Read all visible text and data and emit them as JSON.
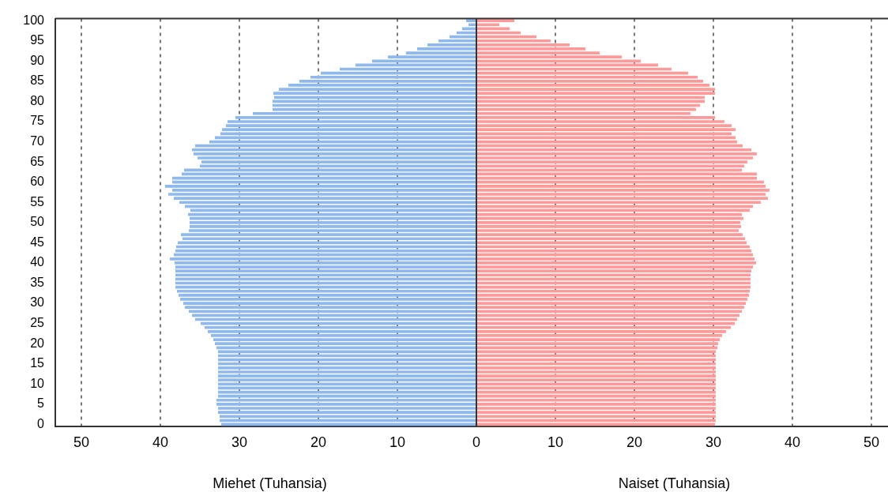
{
  "chart_data": {
    "type": "bar",
    "orientation": "horizontal",
    "categories": [
      "100",
      null,
      null,
      null,
      null,
      "95",
      null,
      null,
      null,
      null,
      "90",
      null,
      null,
      null,
      null,
      "85",
      null,
      null,
      null,
      null,
      "80",
      null,
      null,
      null,
      null,
      "75",
      null,
      null,
      null,
      null,
      "70",
      null,
      null,
      null,
      null,
      "65",
      null,
      null,
      null,
      null,
      "60",
      null,
      null,
      null,
      null,
      "55",
      null,
      null,
      null,
      null,
      "50",
      null,
      null,
      null,
      null,
      "45",
      null,
      null,
      null,
      null,
      "40",
      null,
      null,
      null,
      null,
      "35",
      null,
      null,
      null,
      null,
      "30",
      null,
      null,
      null,
      null,
      "25",
      null,
      null,
      null,
      null,
      "20",
      null,
      null,
      null,
      null,
      "15",
      null,
      null,
      null,
      null,
      "10",
      null,
      null,
      null,
      null,
      "5",
      null,
      null,
      null,
      null,
      "0"
    ],
    "stacked": true,
    "annotations": [
      "Miehet (Tuhansia)",
      "Naiset (Tuhansia)"
    ],
    "series": [
      {
        "color": "#8fb8ec",
        "values": [
          -1.3,
          -1.0,
          -1.8,
          -2.5,
          -3.4,
          -4.8,
          -6.2,
          -7.5,
          -8.9,
          -11.2,
          -13.2,
          -15.3,
          -17.3,
          -19.7,
          -21.0,
          -22.4,
          -23.8,
          -25.0,
          -25.7,
          -25.6,
          -25.8,
          -25.8,
          -25.8,
          -28.3,
          -30.5,
          -31.5,
          -31.7,
          -32.2,
          -32.4,
          -33.1,
          -33.8,
          -35.6,
          -36.0,
          -35.8,
          -35.3,
          -34.8,
          -35.0,
          -37.0,
          -37.3,
          -38.5,
          -38.5,
          -39.4,
          -38.5,
          -39.0,
          -38.3,
          -37.6,
          -36.9,
          -36.2,
          -36.5,
          -36.3,
          -36.3,
          -36.3,
          -36.4,
          -37.4,
          -37.2,
          -37.8,
          -38.0,
          -38.1,
          -38.3,
          -38.8,
          -38.2,
          -38.1,
          -38.1,
          -38.1,
          -38.1,
          -38.1,
          -38.1,
          -37.9,
          -37.7,
          -37.5,
          -37.1,
          -36.9,
          -36.4,
          -36.0,
          -35.6,
          -34.9,
          -34.4,
          -34.0,
          -33.6,
          -33.3,
          -33.1,
          -32.9,
          -32.7,
          -32.7,
          -32.7,
          -32.7,
          -32.7,
          -32.7,
          -32.7,
          -32.7,
          -32.7,
          -32.7,
          -32.7,
          -32.7,
          -32.9,
          -32.9,
          -32.7,
          -32.7,
          -32.5,
          -32.5,
          -32.3
        ]
      },
      {
        "color": "#ff9a9a",
        "values": [
          4.8,
          2.9,
          4.2,
          5.6,
          7.6,
          9.4,
          11.8,
          13.8,
          15.6,
          18.4,
          20.8,
          23.0,
          24.7,
          26.8,
          28.0,
          28.7,
          29.5,
          30.2,
          30.2,
          28.9,
          28.9,
          28.3,
          27.8,
          27.1,
          30.2,
          31.4,
          32.3,
          32.8,
          32.3,
          32.8,
          33.0,
          33.7,
          34.8,
          35.5,
          35.0,
          34.3,
          33.9,
          33.6,
          35.5,
          35.5,
          36.4,
          36.6,
          37.1,
          36.6,
          36.9,
          36.0,
          35.0,
          34.6,
          33.6,
          33.8,
          33.4,
          33.5,
          33.2,
          33.7,
          34.0,
          34.2,
          34.6,
          34.8,
          35.0,
          35.2,
          35.4,
          35.0,
          34.8,
          34.7,
          34.7,
          34.7,
          34.7,
          34.6,
          34.5,
          34.3,
          34.1,
          33.9,
          33.6,
          33.3,
          33.0,
          32.7,
          32.2,
          31.6,
          31.1,
          30.8,
          30.6,
          30.5,
          30.3,
          30.3,
          30.3,
          30.3,
          30.3,
          30.3,
          30.3,
          30.3,
          30.3,
          30.3,
          30.3,
          30.3,
          30.3,
          30.3,
          30.3,
          30.3,
          30.3,
          30.3,
          30.2
        ]
      }
    ],
    "xlim": [
      -53.3,
      52.1
    ],
    "xticks": [
      {
        "value": -50,
        "label": "50"
      },
      {
        "value": -40,
        "label": "40"
      },
      {
        "value": -30,
        "label": "30"
      },
      {
        "value": -20,
        "label": "20"
      },
      {
        "value": -10,
        "label": "10"
      },
      0,
      10,
      20,
      30,
      40,
      50
    ],
    "grid": "x",
    "legend": false
  }
}
